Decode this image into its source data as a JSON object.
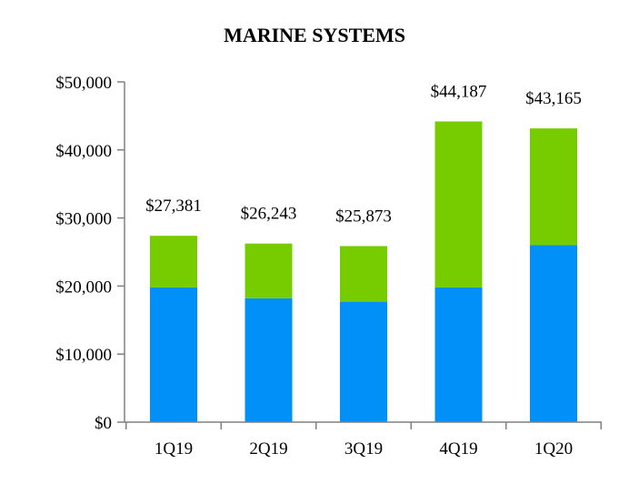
{
  "chart_data": {
    "type": "bar",
    "stacked": true,
    "title": "MARINE SYSTEMS",
    "categories": [
      "1Q19",
      "2Q19",
      "3Q19",
      "4Q19",
      "1Q20"
    ],
    "series": [
      {
        "values": [
          19800,
          18200,
          17700,
          19800,
          26000
        ],
        "color": "#0090f8"
      },
      {
        "values": [
          7581,
          8043,
          8173,
          24387,
          17165
        ],
        "color": "#77cc00"
      }
    ],
    "totals": [
      27381,
      26243,
      25873,
      44187,
      43165
    ],
    "total_labels": [
      "$27,381",
      "$26,243",
      "$25,873",
      "$44,187",
      "$43,165"
    ],
    "ylim": [
      0,
      50000
    ],
    "yticks": [
      0,
      10000,
      20000,
      30000,
      40000,
      50000
    ],
    "ytick_labels": [
      "$0",
      "$10,000",
      "$20,000",
      "$30,000",
      "$40,000",
      "$50,000"
    ],
    "axis_color": "#808080",
    "grid": false,
    "legend": "none"
  }
}
